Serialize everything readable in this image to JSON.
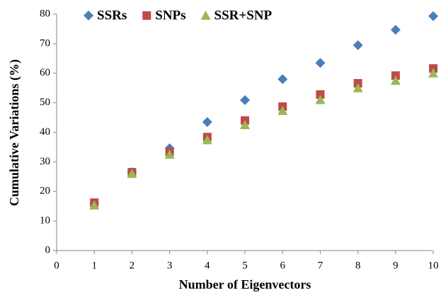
{
  "chart_data": {
    "type": "scatter",
    "x_label": "Number of Eigenvectors",
    "y_label": "Cumulative Variations (%)",
    "x": [
      1,
      2,
      3,
      4,
      5,
      6,
      7,
      8,
      9,
      10
    ],
    "series": [
      {
        "name": "SSRs",
        "color": "#4a7ebb",
        "marker": "diamond",
        "values": [
          16,
          26.5,
          34.6,
          43.5,
          50.9,
          58,
          63.5,
          69.5,
          74.7,
          79.3
        ]
      },
      {
        "name": "SNPs",
        "color": "#be4b48",
        "marker": "square",
        "values": [
          16.2,
          26.5,
          33.4,
          38.4,
          44,
          48.7,
          52.8,
          56.6,
          59.2,
          61.6
        ]
      },
      {
        "name": "SSR+SNP",
        "color": "#98b954",
        "marker": "triangle",
        "values": [
          15.3,
          26,
          32.5,
          37.4,
          42.5,
          47.3,
          51,
          55,
          57.5,
          60
        ]
      }
    ],
    "xlim": [
      0,
      10
    ],
    "xticks": [
      0,
      1,
      2,
      3,
      4,
      5,
      6,
      7,
      8,
      9,
      10
    ],
    "ylim": [
      0,
      80
    ],
    "yticks": [
      0,
      10,
      20,
      30,
      40,
      50,
      60,
      70,
      80
    ],
    "grid": false,
    "legend": "top"
  }
}
